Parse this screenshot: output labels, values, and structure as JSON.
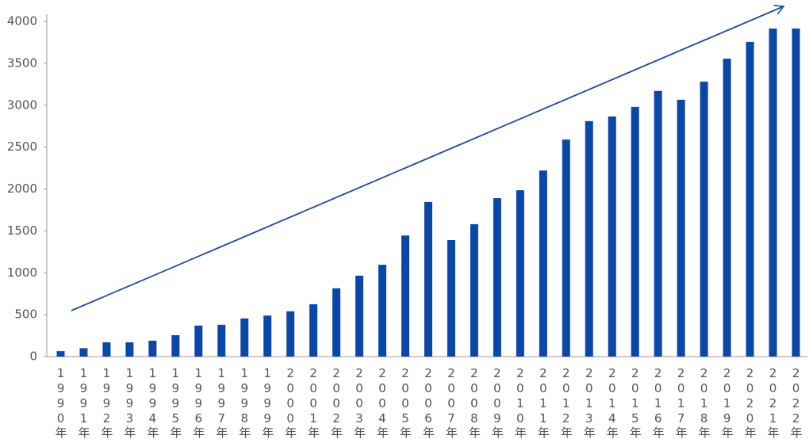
{
  "chart_data": {
    "type": "bar",
    "categories": [
      "1990年",
      "1991年",
      "1992年",
      "1993年",
      "1994年",
      "1995年",
      "1996年",
      "1997年",
      "1998年",
      "1999年",
      "2000年",
      "2001年",
      "2002年",
      "2003年",
      "2004年",
      "2005年",
      "2006年",
      "2007年",
      "2008年",
      "2009年",
      "2010年",
      "2011年",
      "2012年",
      "2013年",
      "2014年",
      "2015年",
      "2016年",
      "2017年",
      "2018年",
      "2019年",
      "2020年",
      "2021年",
      "2022年"
    ],
    "values": [
      65,
      100,
      170,
      170,
      190,
      255,
      370,
      380,
      455,
      490,
      540,
      625,
      815,
      965,
      1095,
      1445,
      1845,
      1390,
      1580,
      1890,
      1985,
      2220,
      2590,
      2810,
      2865,
      2980,
      3170,
      3065,
      3280,
      3555,
      3755,
      3915,
      3915
    ],
    "color": "#0a47a9",
    "ylim": [
      0,
      4000
    ],
    "yticks": [
      0,
      500,
      1000,
      1500,
      2000,
      2500,
      3000,
      3500,
      4000
    ],
    "grid": false
  }
}
